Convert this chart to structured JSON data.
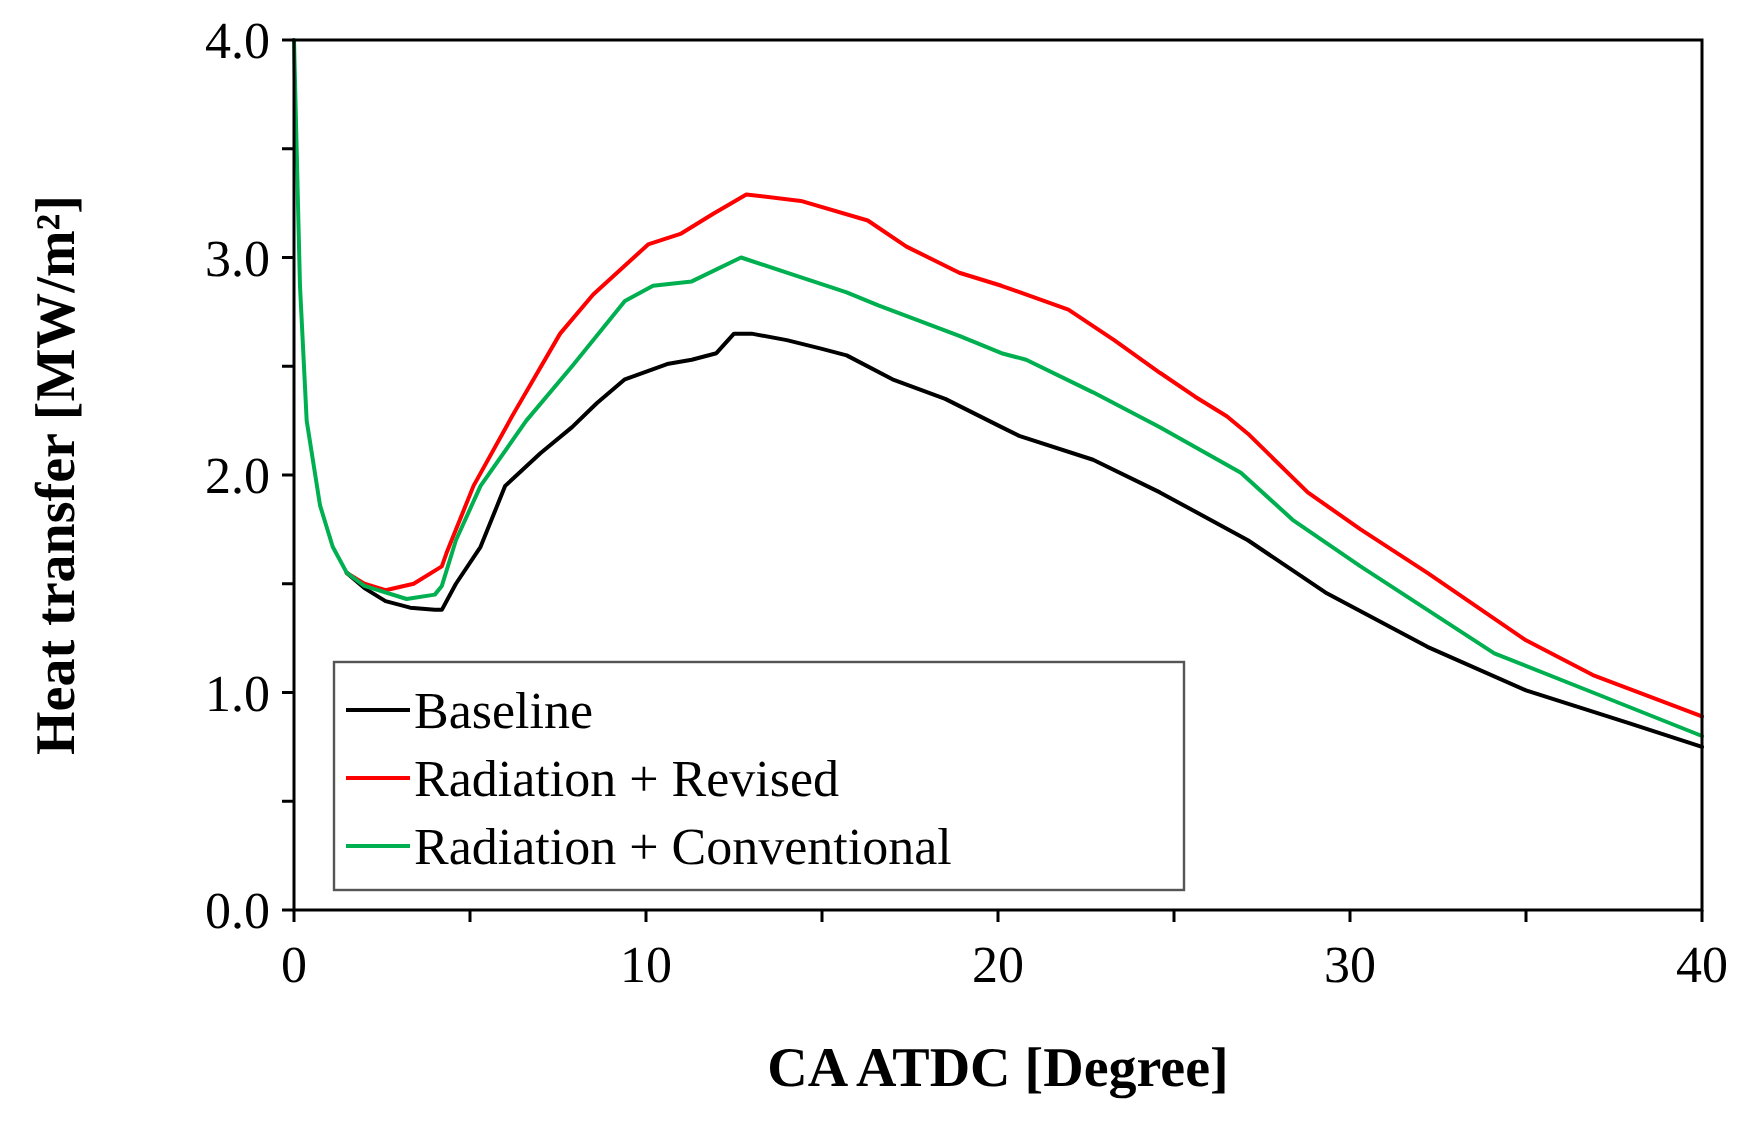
{
  "chart_data": {
    "type": "line",
    "xlabel": "CA ATDC [Degree]",
    "ylabel": "Heat transfer [MW/m²]",
    "xlim": [
      0,
      40
    ],
    "ylim": [
      0,
      4
    ],
    "xticks": [
      0,
      {
        "value": 5,
        "label": null
      },
      10,
      {
        "value": 15,
        "label": null
      },
      20,
      {
        "value": 25,
        "label": null
      },
      30,
      {
        "value": 35,
        "label": null
      },
      40
    ],
    "yticks": [
      {
        "value": 0,
        "label": "0.0"
      },
      {
        "value": 0.5,
        "label": null
      },
      {
        "value": 1,
        "label": "1.0"
      },
      {
        "value": 1.5,
        "label": null
      },
      {
        "value": 2,
        "label": "2.0"
      },
      {
        "value": 2.5,
        "label": null
      },
      {
        "value": 3,
        "label": "3.0"
      },
      {
        "value": 3.5,
        "label": null
      },
      {
        "value": 4,
        "label": "4.0"
      }
    ],
    "grid": false,
    "legend": "bottom left",
    "line_style": "solid",
    "series": [
      {
        "name": "Baseline",
        "color": "#000000",
        "x": [
          1.5,
          2,
          2.6,
          3.3,
          4,
          4.2,
          4.6,
          5.3,
          6,
          7,
          7.9,
          8.6,
          9.4,
          10.6,
          11.3,
          12,
          12.5,
          13,
          14,
          15,
          15.7,
          17,
          18.5,
          20.1,
          20.6,
          22.7,
          24.6,
          27.1,
          29.3,
          32.2,
          35,
          37.9,
          40
        ],
        "values": [
          1.55,
          1.48,
          1.42,
          1.39,
          1.38,
          1.38,
          1.5,
          1.67,
          1.95,
          2.1,
          2.22,
          2.33,
          2.44,
          2.51,
          2.53,
          2.56,
          2.65,
          2.65,
          2.62,
          2.58,
          2.55,
          2.44,
          2.35,
          2.22,
          2.18,
          2.07,
          1.92,
          1.7,
          1.46,
          1.21,
          1.01,
          0.86,
          0.75
        ]
      },
      {
        "name": "Radiation + Revised",
        "color": "#ff0000",
        "x": [
          1.5,
          2,
          2.6,
          3.4,
          4.2,
          4.33,
          5.1,
          6.23,
          7.56,
          8.5,
          10.06,
          11,
          11.9,
          12.85,
          14.4,
          16.3,
          17.4,
          18.9,
          20.1,
          22,
          23.3,
          24.6,
          25.6,
          26.5,
          27.1,
          28.8,
          30.3,
          32.2,
          35,
          36.9,
          40
        ],
        "values": [
          1.55,
          1.5,
          1.47,
          1.5,
          1.58,
          1.64,
          1.95,
          2.28,
          2.65,
          2.83,
          3.06,
          3.11,
          3.2,
          3.29,
          3.26,
          3.17,
          3.05,
          2.93,
          2.87,
          2.76,
          2.62,
          2.47,
          2.36,
          2.27,
          2.19,
          1.92,
          1.75,
          1.55,
          1.24,
          1.08,
          0.89
        ]
      },
      {
        "name": "Radiation + Conventional",
        "color": "#00b050",
        "x": [
          0,
          0.17,
          0.36,
          0.74,
          1.1,
          1.5,
          2,
          3.2,
          4,
          4.2,
          4.6,
          5.3,
          6.6,
          7.9,
          9.4,
          10.2,
          11.3,
          12.7,
          14,
          15.7,
          16.6,
          18.9,
          20.1,
          20.8,
          22.7,
          24.6,
          26.9,
          28.4,
          30.3,
          34.1,
          36.9,
          40
        ],
        "values": [
          4,
          2.87,
          2.25,
          1.86,
          1.67,
          1.55,
          1.49,
          1.43,
          1.45,
          1.49,
          1.7,
          1.95,
          2.25,
          2.5,
          2.8,
          2.87,
          2.89,
          3,
          2.93,
          2.84,
          2.78,
          2.64,
          2.56,
          2.53,
          2.38,
          2.22,
          2.01,
          1.79,
          1.58,
          1.18,
          1,
          0.8
        ]
      }
    ]
  }
}
